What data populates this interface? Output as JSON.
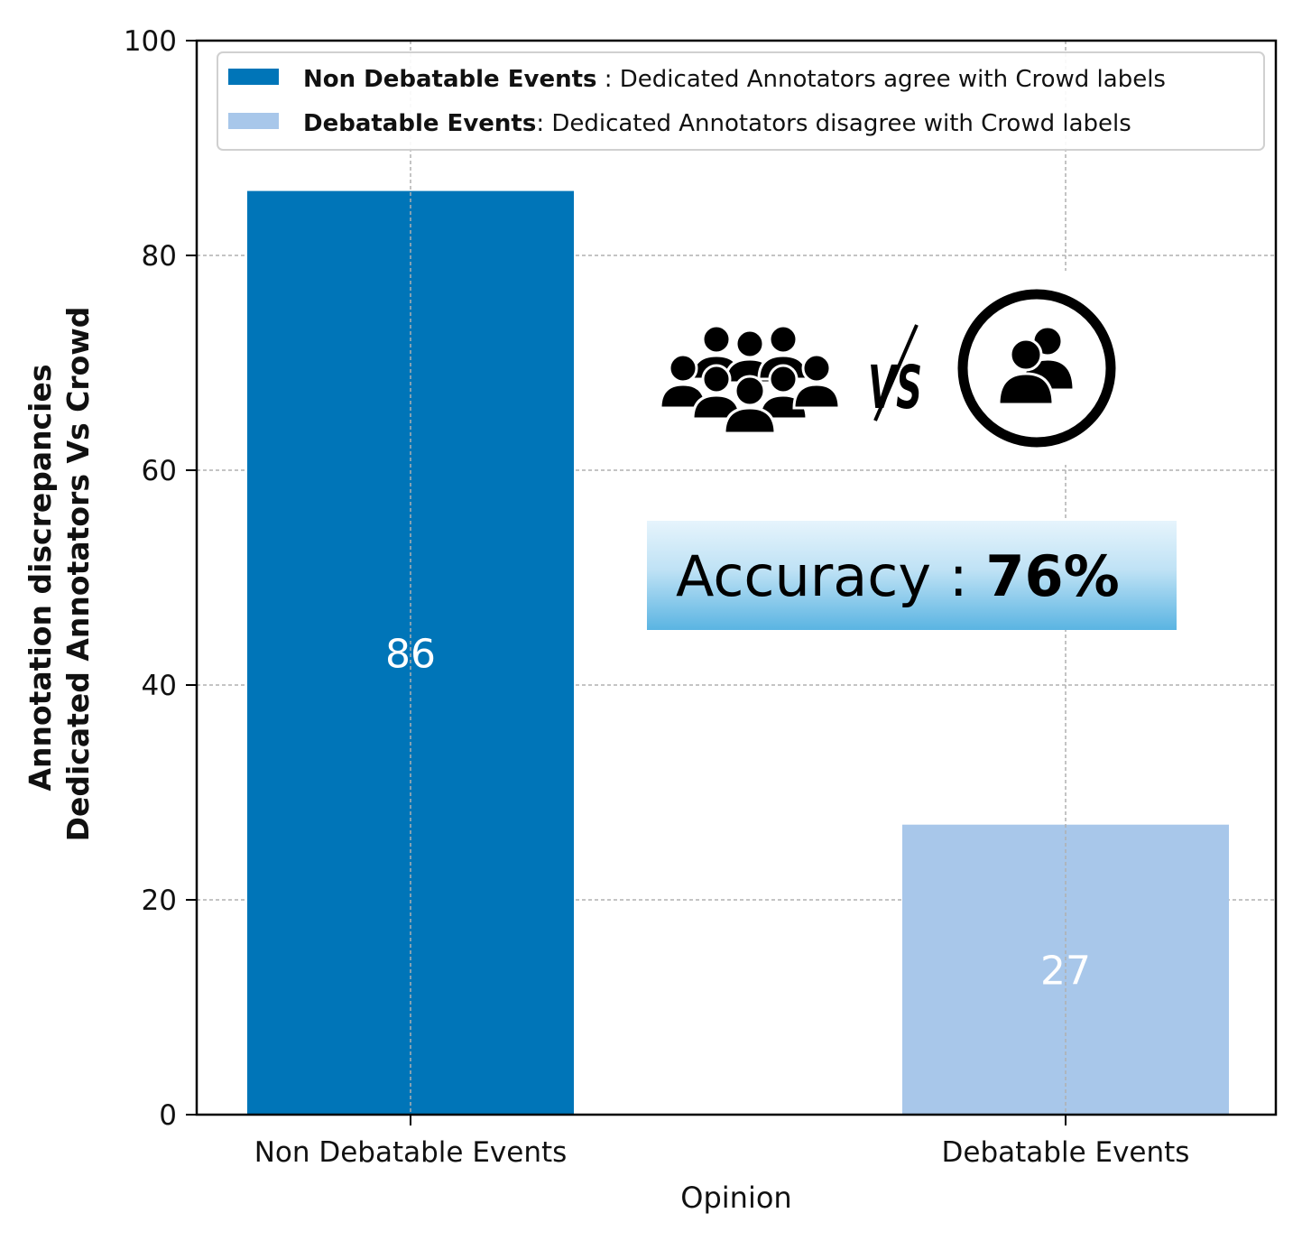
{
  "chart_data": {
    "type": "bar",
    "categories": [
      "Non Debatable Events",
      "Debatable Events"
    ],
    "values": [
      86,
      27
    ],
    "bar_labels": [
      "86",
      "27"
    ],
    "colors": [
      "#0075b8",
      "#a8c7ea"
    ],
    "xlabel": "Opinion",
    "ylabel_lines": [
      "Annotation discrepancies",
      "Dedicated Annotators Vs Crowd"
    ],
    "ylim": [
      0,
      100
    ],
    "yticks": [
      0,
      20,
      40,
      60,
      80,
      100
    ],
    "grid": true,
    "legend_position": "top",
    "legend": [
      {
        "bold": "Non Debatable Events",
        "text": " : Dedicated Annotators agree with Crowd labels",
        "color": "#0075b8"
      },
      {
        "bold": "Debatable Events",
        "text": ": Dedicated Annotators disagree with  Crowd labels",
        "color": "#a8c7ea"
      }
    ]
  },
  "annotation": {
    "vs_text": "VS",
    "accuracy_label": "Accuracy : ",
    "accuracy_value": "76%",
    "icons": [
      "crowd-icon",
      "dedicated-annotators-icon"
    ]
  }
}
